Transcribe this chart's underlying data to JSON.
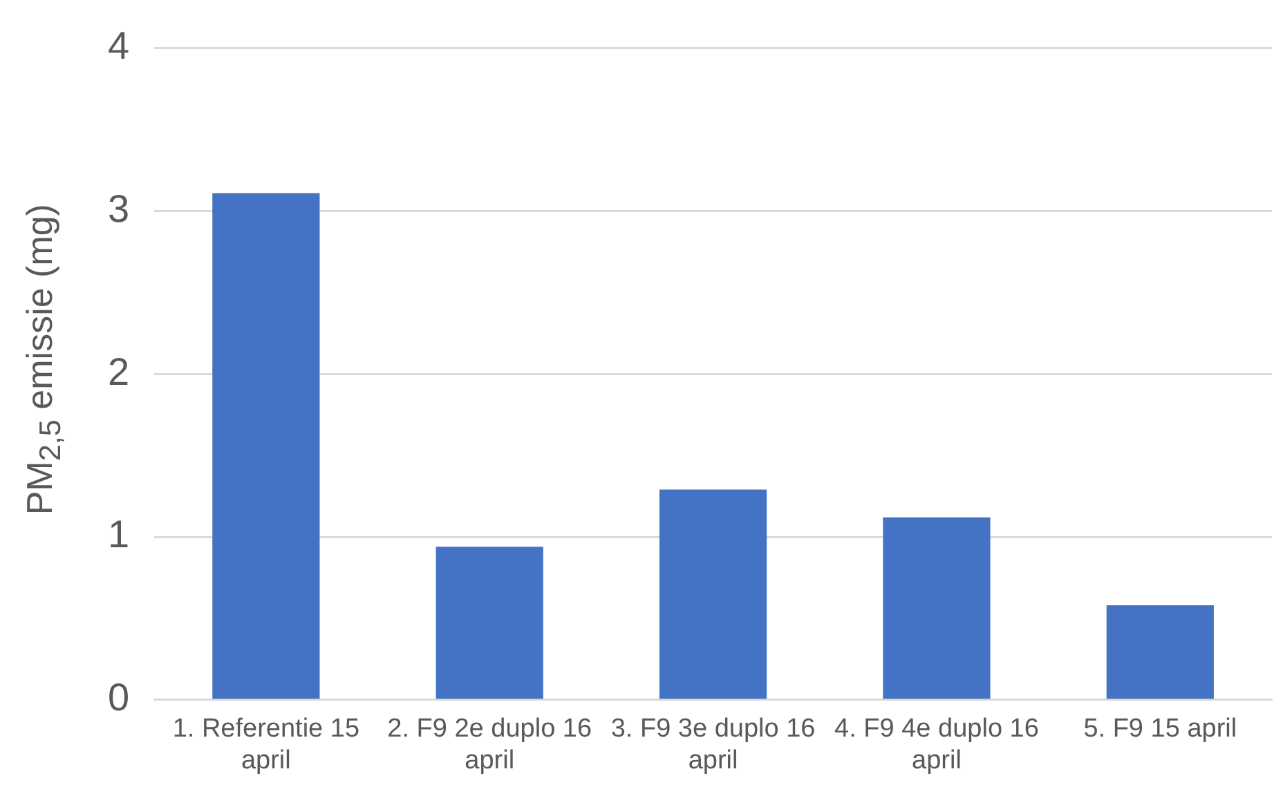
{
  "chart_data": {
    "type": "bar",
    "ylabel": "PM$_{2,5}$ emissie (mg)",
    "categories": [
      "1. Referentie 15 april",
      "2. F9 2e duplo 16 april",
      "3. F9 3e duplo 16 april",
      "4. F9 4e duplo 16 april",
      "5. F9 15 april"
    ],
    "values": [
      3.11,
      0.94,
      1.29,
      1.12,
      0.58
    ],
    "color": "#4472c4",
    "ylim": [
      0,
      4
    ],
    "yticks": [
      0,
      1,
      2,
      3,
      4
    ],
    "grid": "y",
    "legend": false
  }
}
